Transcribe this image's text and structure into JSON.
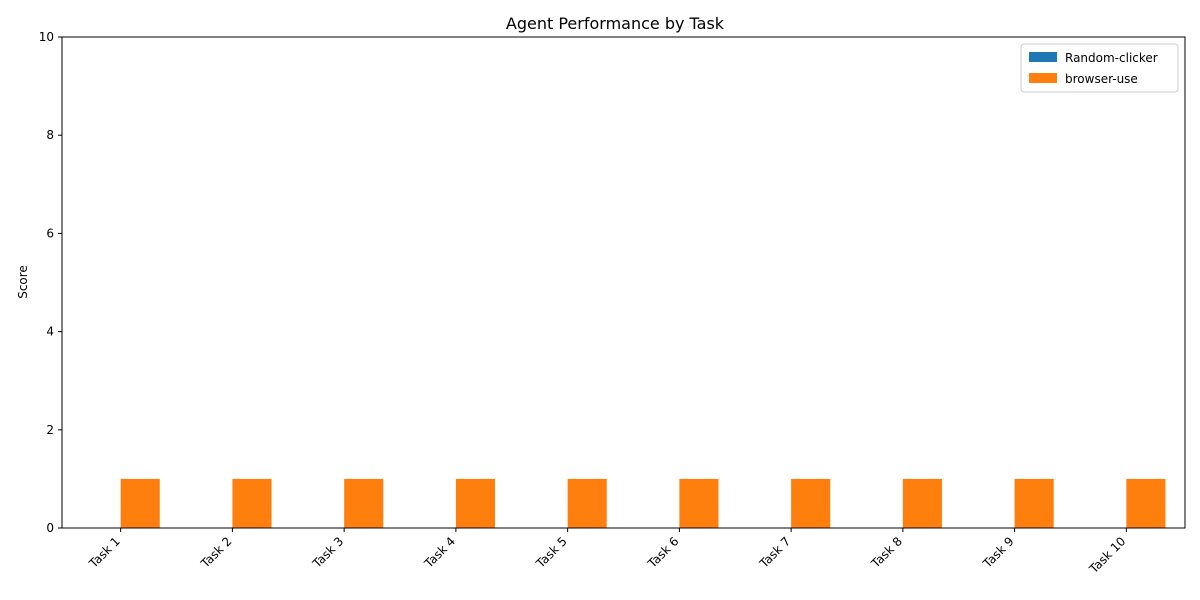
{
  "chart_data": {
    "type": "bar",
    "title": "Agent Performance by Task",
    "xlabel": "",
    "ylabel": "Score",
    "ylim": [
      0,
      10
    ],
    "yticks": [
      0,
      2,
      4,
      6,
      8,
      10
    ],
    "categories": [
      "Task 1",
      "Task 2",
      "Task 3",
      "Task 4",
      "Task 5",
      "Task 6",
      "Task 7",
      "Task 8",
      "Task 9",
      "Task 10"
    ],
    "series": [
      {
        "name": "Random-clicker",
        "values": [
          0,
          0,
          0,
          0,
          0,
          0,
          0,
          0,
          0,
          0
        ],
        "color": "#1f77b4"
      },
      {
        "name": "browser-use",
        "values": [
          1,
          1,
          1,
          1,
          1,
          1,
          1,
          1,
          1,
          1
        ],
        "color": "#ff7f0e"
      }
    ],
    "grid": false,
    "legend_position": "top-right"
  }
}
